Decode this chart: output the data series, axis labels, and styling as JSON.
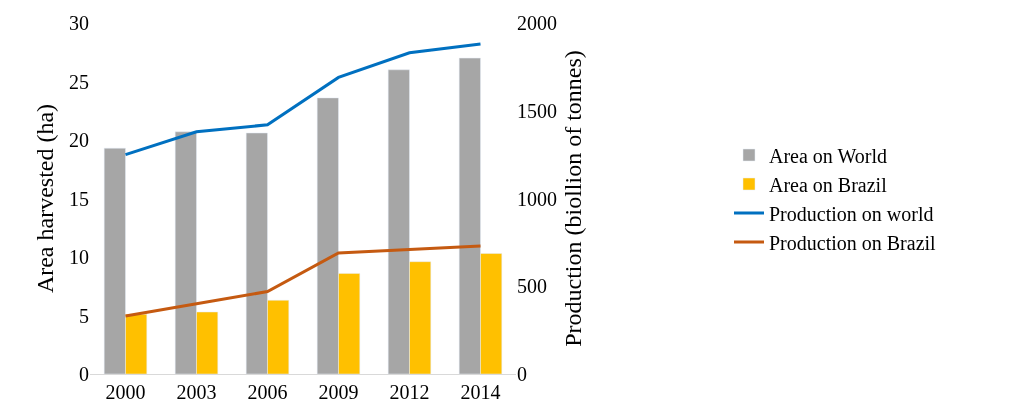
{
  "chart_data": {
    "type": "bar",
    "categories": [
      "2000",
      "2003",
      "2006",
      "2009",
      "2012",
      "2014"
    ],
    "ylabel": "Area harvested (ha)",
    "y2label": "Production (biollion of tonnes)",
    "ylim": [
      0,
      30
    ],
    "yticks": [
      0,
      5,
      10,
      15,
      20,
      25,
      30
    ],
    "y2lim": [
      0,
      2000
    ],
    "y2ticks": [
      0,
      500,
      1000,
      1500,
      2000
    ],
    "legend": "right",
    "series": [
      {
        "name": "Area on World",
        "color": "#a6a6a6",
        "values": [
          19.3,
          20.7,
          20.6,
          23.6,
          26.0,
          27.0
        ]
      },
      {
        "name": "Area on Brazil",
        "color": "#ffc000",
        "values": [
          5.1,
          5.3,
          6.3,
          8.6,
          9.6,
          10.3
        ]
      },
      {
        "name": "Production on world",
        "type": "line",
        "axis": "y2",
        "color": "#0070c0",
        "values": [
          1250,
          1380,
          1420,
          1690,
          1830,
          1880
        ]
      },
      {
        "name": "Production on Brazil",
        "type": "line",
        "axis": "y2",
        "color": "#c55a11",
        "values": [
          330,
          400,
          470,
          690,
          710,
          730
        ]
      }
    ]
  }
}
